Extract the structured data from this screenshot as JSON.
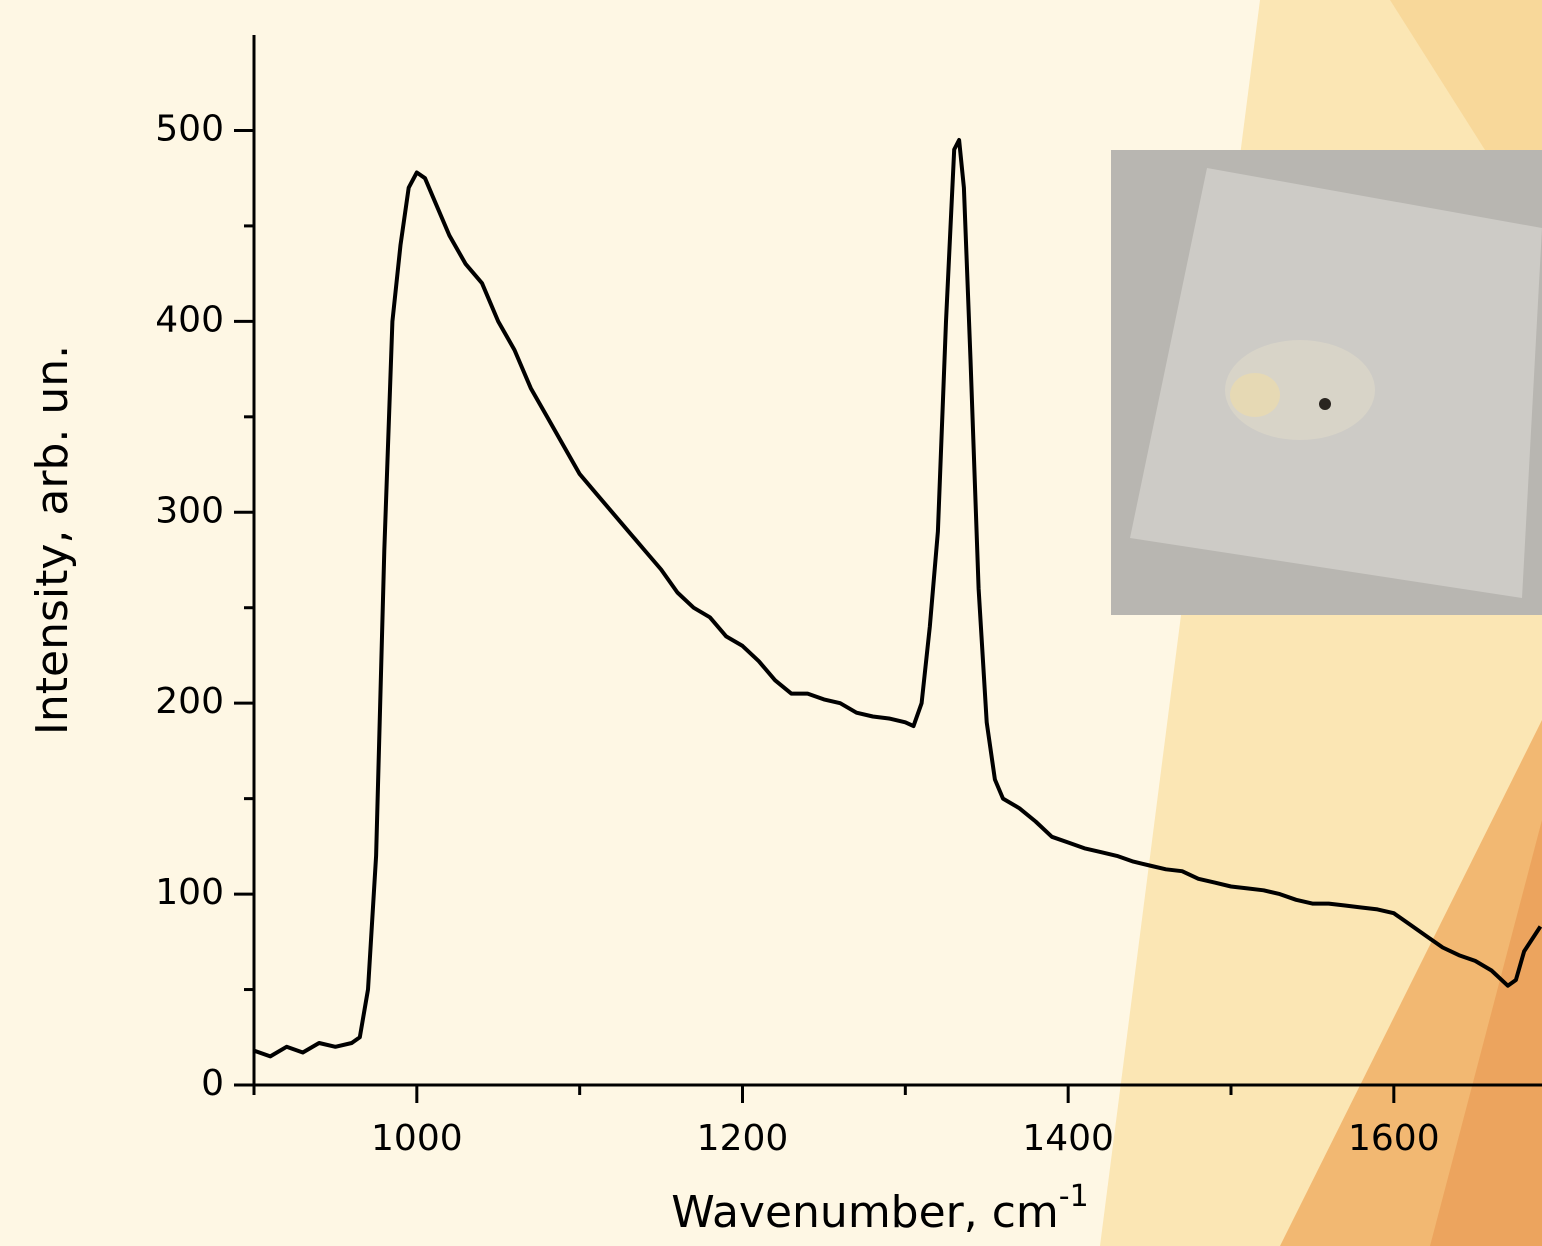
{
  "chart_data": {
    "type": "line",
    "x_label": "Wavenumber, cm",
    "x_label_sup": "-1",
    "y_label": "Intensity, arb. un.",
    "x": [
      900,
      910,
      920,
      930,
      940,
      950,
      960,
      965,
      970,
      975,
      980,
      985,
      990,
      995,
      1000,
      1005,
      1010,
      1020,
      1030,
      1040,
      1050,
      1060,
      1070,
      1080,
      1090,
      1100,
      1110,
      1120,
      1130,
      1140,
      1150,
      1160,
      1170,
      1180,
      1190,
      1200,
      1210,
      1220,
      1230,
      1240,
      1250,
      1260,
      1270,
      1280,
      1290,
      1300,
      1305,
      1310,
      1315,
      1320,
      1325,
      1330,
      1333,
      1336,
      1340,
      1345,
      1350,
      1355,
      1360,
      1370,
      1380,
      1390,
      1400,
      1410,
      1420,
      1430,
      1440,
      1450,
      1460,
      1470,
      1480,
      1490,
      1500,
      1510,
      1520,
      1530,
      1540,
      1550,
      1560,
      1570,
      1580,
      1590,
      1600,
      1610,
      1620,
      1630,
      1640,
      1650,
      1660,
      1670,
      1675,
      1680,
      1690
    ],
    "values": [
      18,
      15,
      20,
      17,
      22,
      20,
      22,
      25,
      50,
      120,
      280,
      400,
      440,
      470,
      478,
      475,
      465,
      445,
      430,
      420,
      400,
      385,
      365,
      350,
      335,
      320,
      310,
      300,
      290,
      280,
      270,
      258,
      250,
      245,
      235,
      230,
      222,
      212,
      205,
      205,
      202,
      200,
      195,
      193,
      192,
      190,
      188,
      200,
      240,
      290,
      400,
      490,
      495,
      470,
      380,
      260,
      190,
      160,
      150,
      145,
      138,
      130,
      127,
      124,
      122,
      120,
      117,
      115,
      113,
      112,
      108,
      106,
      104,
      103,
      102,
      100,
      97,
      95,
      95,
      94,
      93,
      92,
      90,
      84,
      78,
      72,
      68,
      65,
      60,
      52,
      55,
      70,
      83
    ],
    "color": "#000000",
    "xlim": [
      900,
      1691
    ],
    "ylim": [
      0,
      550
    ],
    "xticks": [
      1000,
      1200,
      1400,
      1600
    ],
    "yticks": [
      0,
      100,
      200,
      300,
      400,
      500
    ],
    "xminorticks": [
      900,
      1100,
      1300,
      1500
    ],
    "yminorticks": [
      50,
      150,
      250,
      350,
      450
    ]
  }
}
